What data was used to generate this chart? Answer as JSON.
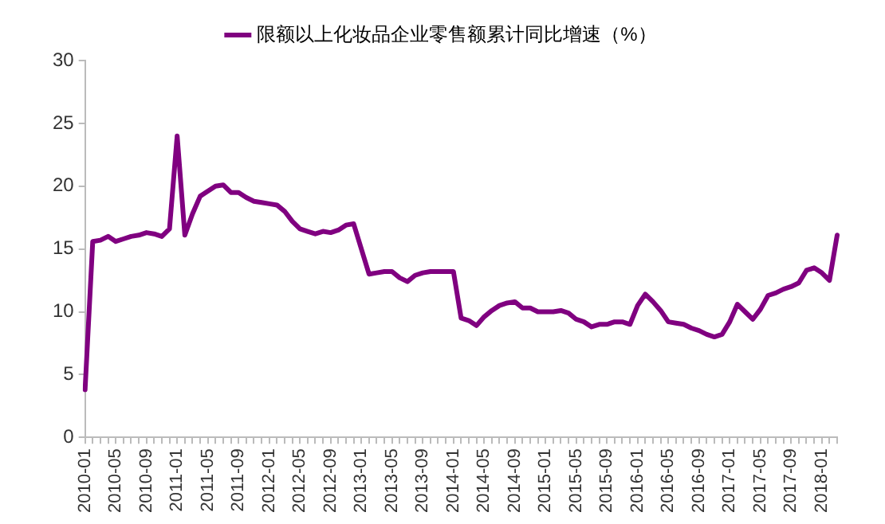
{
  "chart_data": {
    "type": "line",
    "categories": [
      "2010-01",
      null,
      null,
      null,
      "2010-05",
      null,
      null,
      null,
      "2010-09",
      null,
      null,
      null,
      "2011-01",
      null,
      null,
      null,
      "2011-05",
      null,
      null,
      null,
      "2011-09",
      null,
      null,
      null,
      "2012-01",
      null,
      null,
      null,
      "2012-05",
      null,
      null,
      null,
      "2012-09",
      null,
      null,
      null,
      "2013-01",
      null,
      null,
      null,
      "2013-05",
      null,
      null,
      null,
      "2013-09",
      null,
      null,
      null,
      "2014-01",
      null,
      null,
      null,
      "2014-05",
      null,
      null,
      null,
      "2014-09",
      null,
      null,
      null,
      "2015-01",
      null,
      null,
      null,
      "2015-05",
      null,
      null,
      null,
      "2015-09",
      null,
      null,
      null,
      "2016-01",
      null,
      null,
      null,
      "2016-05",
      null,
      null,
      null,
      "2016-09",
      null,
      null,
      null,
      "2017-01",
      null,
      null,
      null,
      "2017-05",
      null,
      null,
      null,
      "2017-09",
      null,
      null,
      null,
      "2018-01",
      null,
      null
    ],
    "series": [
      {
        "name": "限额以上化妆品企业零售额累计同比增速（%）",
        "color": "#800080",
        "values": [
          3.8,
          15.6,
          15.7,
          16.0,
          15.6,
          15.8,
          16.0,
          16.1,
          16.3,
          16.2,
          16.0,
          16.6,
          24.0,
          16.1,
          17.8,
          19.2,
          19.6,
          20.0,
          20.1,
          19.5,
          19.5,
          19.1,
          18.8,
          18.7,
          18.6,
          18.5,
          18.0,
          17.2,
          16.6,
          16.4,
          16.2,
          16.4,
          16.3,
          16.5,
          16.9,
          17.0,
          15.0,
          13.0,
          13.1,
          13.2,
          13.2,
          12.7,
          12.4,
          12.9,
          13.1,
          13.2,
          13.2,
          13.2,
          13.2,
          9.5,
          9.3,
          8.9,
          9.6,
          10.1,
          10.5,
          10.7,
          10.8,
          10.3,
          10.3,
          10.0,
          10.0,
          10.0,
          10.1,
          9.9,
          9.4,
          9.2,
          8.8,
          9.0,
          9.0,
          9.2,
          9.2,
          9.0,
          10.5,
          11.4,
          10.8,
          10.1,
          9.2,
          9.1,
          9.0,
          8.7,
          8.5,
          8.2,
          8.0,
          8.2,
          9.2,
          10.6,
          10.0,
          9.4,
          10.2,
          11.3,
          11.5,
          11.8,
          12.0,
          12.3,
          13.3,
          13.5,
          13.1,
          12.5,
          16.1
        ]
      }
    ],
    "ylim": [
      0,
      30
    ],
    "yticks": [
      0,
      5,
      10,
      15,
      20,
      25,
      30
    ],
    "legend": "top",
    "grid": false,
    "marker": "none",
    "line_style": "solid"
  }
}
